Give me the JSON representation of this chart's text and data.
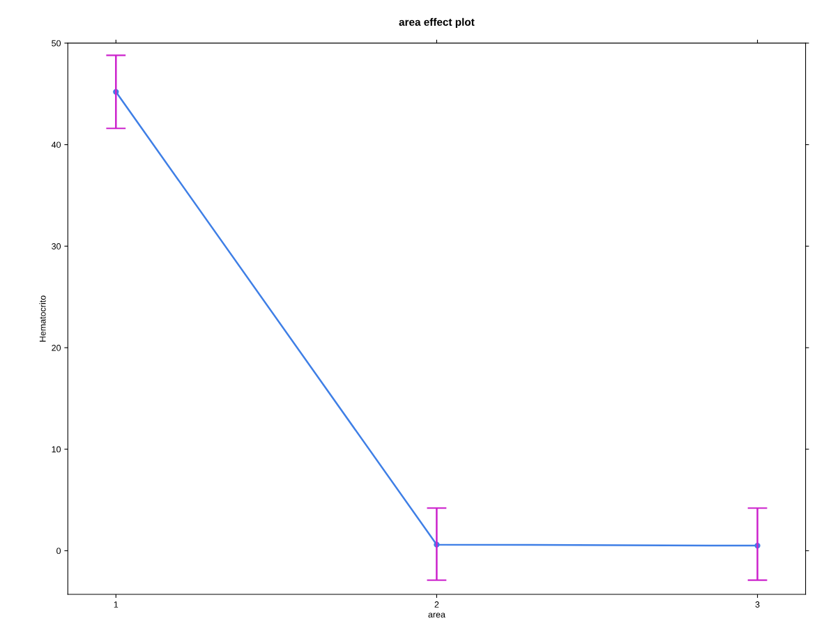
{
  "chart_data": {
    "type": "line",
    "title": "area effect plot",
    "xlabel": "area",
    "ylabel": "Hematocrito",
    "categories": [
      "1",
      "2",
      "3"
    ],
    "series": [
      {
        "color": "#3f7fe6",
        "values": [
          45.2,
          0.6,
          0.5
        ],
        "errors": [
          [
            41.6,
            48.8
          ],
          [
            -2.9,
            4.2
          ],
          [
            -2.9,
            4.2
          ]
        ]
      }
    ],
    "ylim": [
      -4.3,
      50
    ],
    "yticks": [
      0,
      10,
      20,
      30,
      40,
      50
    ],
    "marker": "circle",
    "line_style": "solid",
    "grid": false,
    "legend": false
  }
}
